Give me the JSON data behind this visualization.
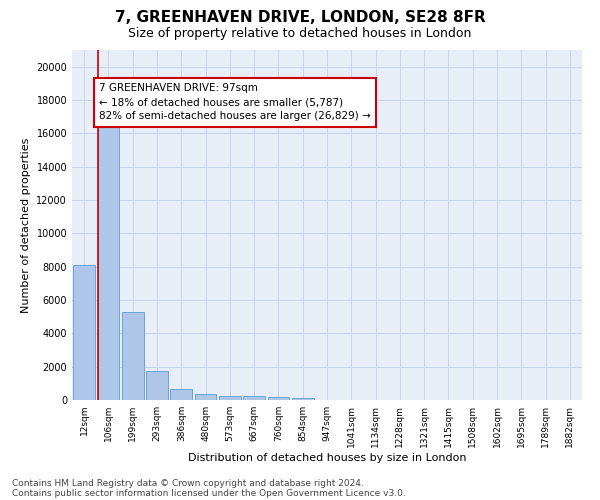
{
  "title": "7, GREENHAVEN DRIVE, LONDON, SE28 8FR",
  "subtitle": "Size of property relative to detached houses in London",
  "xlabel": "Distribution of detached houses by size in London",
  "ylabel": "Number of detached properties",
  "footnote1": "Contains HM Land Registry data © Crown copyright and database right 2024.",
  "footnote2": "Contains public sector information licensed under the Open Government Licence v3.0.",
  "annotation_line1": "7 GREENHAVEN DRIVE: 97sqm",
  "annotation_line2": "← 18% of detached houses are smaller (5,787)",
  "annotation_line3": "82% of semi-detached houses are larger (26,829) →",
  "bar_labels": [
    "12sqm",
    "106sqm",
    "199sqm",
    "293sqm",
    "386sqm",
    "480sqm",
    "573sqm",
    "667sqm",
    "760sqm",
    "854sqm",
    "947sqm",
    "1041sqm",
    "1134sqm",
    "1228sqm",
    "1321sqm",
    "1415sqm",
    "1508sqm",
    "1602sqm",
    "1695sqm",
    "1789sqm",
    "1882sqm"
  ],
  "bar_values": [
    8100,
    16500,
    5300,
    1750,
    650,
    340,
    270,
    220,
    180,
    130,
    0,
    0,
    0,
    0,
    0,
    0,
    0,
    0,
    0,
    0,
    0
  ],
  "bar_color": "#aec6e8",
  "bar_edge_color": "#5b9bd5",
  "vline_color": "#cc0000",
  "vline_x_index": 0.575,
  "annotation_box_color": "#cc0000",
  "ylim": [
    0,
    21000
  ],
  "yticks": [
    0,
    2000,
    4000,
    6000,
    8000,
    10000,
    12000,
    14000,
    16000,
    18000,
    20000
  ],
  "grid_color": "#c8d4e8",
  "bg_color": "#e8eef8",
  "title_fontsize": 11,
  "subtitle_fontsize": 9,
  "axis_label_fontsize": 8,
  "tick_fontsize": 7,
  "annotation_fontsize": 7.5,
  "footnote_fontsize": 6.5
}
